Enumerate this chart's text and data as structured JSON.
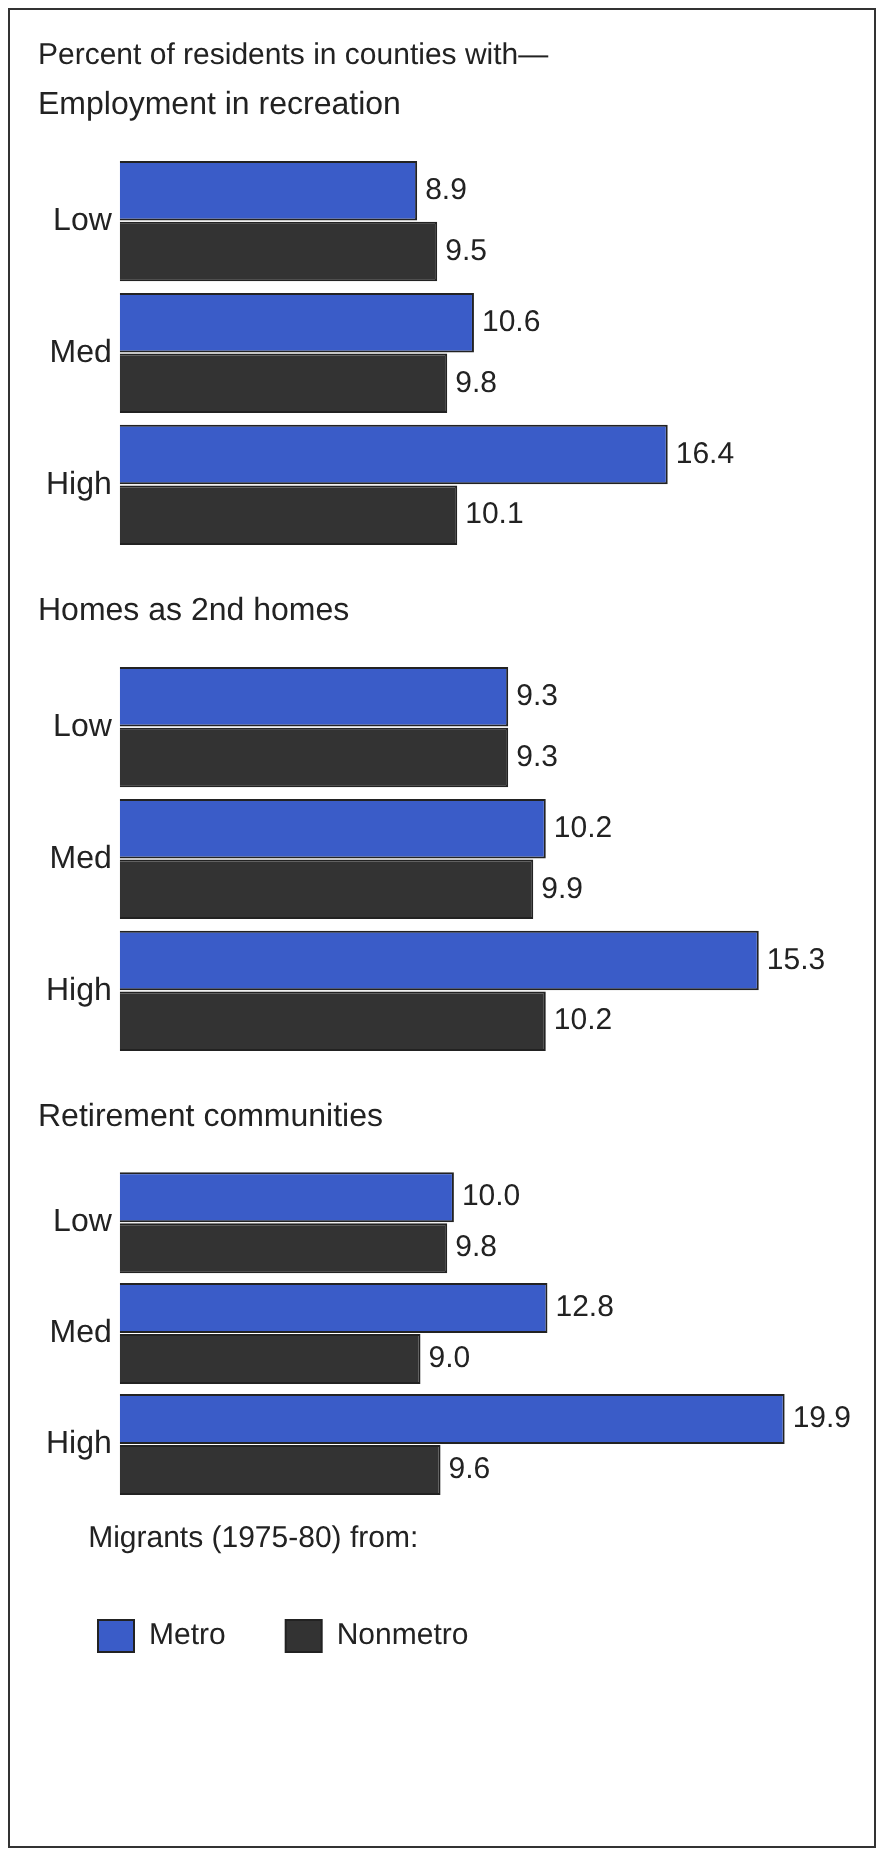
{
  "chart_data": [
    {
      "type": "bar",
      "orientation": "horizontal",
      "annotations": [
        "Percent of residents in counties with—"
      ],
      "title": "Employment in recreation",
      "categories": [
        "Low",
        "Med",
        "High"
      ],
      "series": [
        {
          "color": "#3a5cc8",
          "values": [
            8.9,
            10.6,
            16.4
          ]
        },
        {
          "color": "#333333",
          "values": [
            9.5,
            9.8,
            10.1
          ]
        }
      ],
      "data_labels": true,
      "grid": false,
      "legend": false,
      "tick_labels": "y"
    },
    {
      "type": "bar",
      "orientation": "horizontal",
      "title": "Homes as 2nd homes",
      "categories": [
        "Low",
        "Med",
        "High"
      ],
      "series": [
        {
          "color": "#3a5cc8",
          "values": [
            9.3,
            10.2,
            15.3
          ]
        },
        {
          "color": "#333333",
          "values": [
            9.3,
            9.9,
            10.2
          ]
        }
      ],
      "data_labels": true,
      "grid": false,
      "legend": false,
      "tick_labels": "y"
    },
    {
      "type": "bar",
      "orientation": "horizontal",
      "title": "Retirement communities",
      "categories": [
        "Low",
        "Med",
        "High"
      ],
      "series": [
        {
          "name": "Metro",
          "color": "#3a5cc8",
          "values": [
            10.0,
            12.8,
            19.9
          ],
          "value_labels": [
            "10.0",
            "12.8",
            "19.9"
          ]
        },
        {
          "name": "Nonmetro",
          "color": "#333333",
          "values": [
            9.8,
            9.0,
            9.6
          ],
          "value_labels": [
            "9.8",
            "9.0",
            "9.6"
          ]
        }
      ],
      "grid": false,
      "legend": "bottom",
      "legend_title": "Migrants (1975-80) from:",
      "tick_labels": "y"
    }
  ]
}
